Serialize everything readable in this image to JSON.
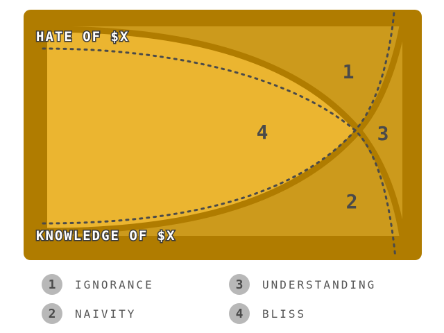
{
  "diagram": {
    "y_axis_label": "HATE OF $X",
    "x_axis_label": "KNOWLEDGE OF $X",
    "regions": [
      {
        "number": "1"
      },
      {
        "number": "2"
      },
      {
        "number": "3"
      },
      {
        "number": "4"
      }
    ],
    "colors": {
      "frame": "#b07c00",
      "inner_dark": "#cc9a1c",
      "inner_light": "#ebb530",
      "curve": "#b07c00",
      "dotted": "#4a4a4a"
    }
  },
  "legend": {
    "items": [
      {
        "number": "1",
        "label": "IGNORANCE"
      },
      {
        "number": "2",
        "label": "NAIVITY"
      },
      {
        "number": "3",
        "label": "UNDERSTANDING"
      },
      {
        "number": "4",
        "label": "BLISS"
      }
    ]
  }
}
